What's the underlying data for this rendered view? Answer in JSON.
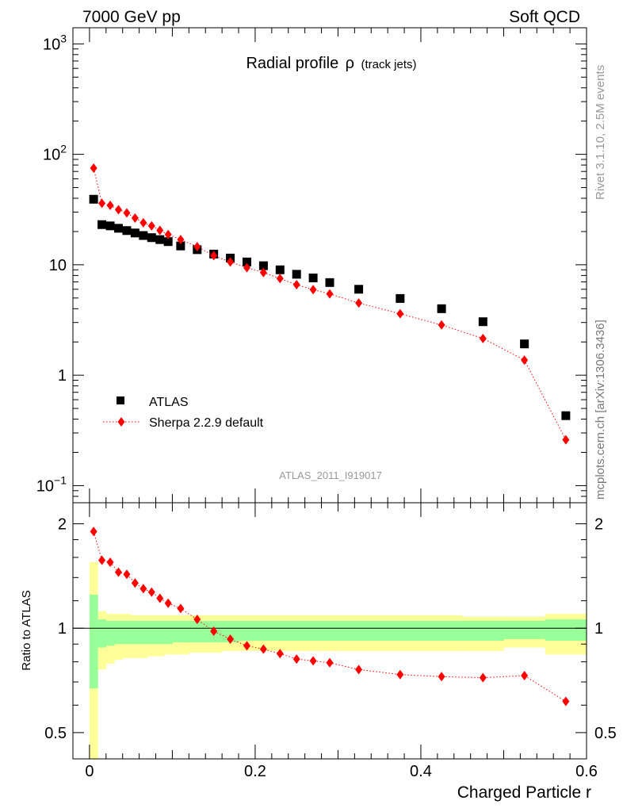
{
  "header": {
    "left": "7000 GeV pp",
    "right": "Soft QCD"
  },
  "side_labels": {
    "top": "Rivet 3.1.10,  2.5M events",
    "bottom": "mcplots.cern.ch [arXiv:1306.3436]"
  },
  "chart_data": [
    {
      "type": "scatter",
      "title": "Radial profile",
      "title_symbol": "ρ",
      "title_suffix": "(track jets)",
      "watermark": "ATLAS_2011_I919017",
      "yscale": "log",
      "ylim": [
        0.07,
        1400
      ],
      "xlim": [
        -0.02,
        0.6
      ],
      "y_ticks": [
        {
          "v": 1000,
          "base": "10",
          "exp": "3"
        },
        {
          "v": 100,
          "base": "10",
          "exp": "2"
        },
        {
          "v": 10,
          "label": "10"
        },
        {
          "v": 1,
          "label": "1"
        },
        {
          "v": 0.1,
          "base": "10",
          "exp": "−1"
        }
      ],
      "legend_position": "bottom-left",
      "series": [
        {
          "name": "ATLAS",
          "color": "#000000",
          "marker": "square",
          "x": [
            0.005,
            0.015,
            0.025,
            0.035,
            0.045,
            0.055,
            0.065,
            0.075,
            0.085,
            0.095,
            0.11,
            0.13,
            0.15,
            0.17,
            0.19,
            0.21,
            0.23,
            0.25,
            0.27,
            0.29,
            0.325,
            0.375,
            0.425,
            0.475,
            0.525,
            0.575
          ],
          "y": [
            39.2,
            23.1,
            22.5,
            21.4,
            20.4,
            19.4,
            18.4,
            17.6,
            16.9,
            16.2,
            14.8,
            13.7,
            12.5,
            11.5,
            10.6,
            9.8,
            9.0,
            8.2,
            7.6,
            6.9,
            6.0,
            4.95,
            4.0,
            3.05,
            1.92,
            0.43
          ]
        },
        {
          "name": "Sherpa 2.2.9 default",
          "color": "#ff0000",
          "marker": "diamond",
          "line": "dotted",
          "x": [
            0.005,
            0.015,
            0.025,
            0.035,
            0.045,
            0.055,
            0.065,
            0.075,
            0.085,
            0.095,
            0.11,
            0.13,
            0.15,
            0.17,
            0.19,
            0.21,
            0.23,
            0.25,
            0.27,
            0.29,
            0.325,
            0.375,
            0.425,
            0.475,
            0.525,
            0.575
          ],
          "y": [
            75,
            36,
            34.5,
            31.5,
            29.5,
            26.5,
            24,
            22.5,
            20.5,
            18.8,
            16.9,
            14.6,
            12.1,
            10.6,
            9.4,
            8.5,
            7.5,
            6.6,
            5.95,
            5.45,
            4.5,
            3.6,
            2.85,
            2.15,
            1.37,
            0.26
          ]
        }
      ]
    },
    {
      "type": "scatter",
      "ylabel": "Ratio to ATLAS",
      "xlabel": "Charged Particle r",
      "yscale": "log",
      "ylim": [
        0.42,
        2.3
      ],
      "xlim": [
        -0.02,
        0.6
      ],
      "y_ticks": [
        {
          "v": 2,
          "label": "2"
        },
        {
          "v": 1,
          "label": "1"
        },
        {
          "v": 0.5,
          "label": "0.5"
        }
      ],
      "x_ticks": [
        {
          "v": 0,
          "label": "0"
        },
        {
          "v": 0.2,
          "label": "0.2"
        },
        {
          "v": 0.4,
          "label": "0.4"
        },
        {
          "v": 0.6,
          "label": "0.6"
        }
      ],
      "bands": {
        "edges": [
          0,
          0.01,
          0.02,
          0.03,
          0.04,
          0.05,
          0.06,
          0.07,
          0.08,
          0.09,
          0.1,
          0.12,
          0.14,
          0.16,
          0.18,
          0.2,
          0.22,
          0.24,
          0.26,
          0.28,
          0.3,
          0.35,
          0.4,
          0.45,
          0.5,
          0.55,
          0.6
        ],
        "yellow_color": "#ffff99",
        "green_color": "#99ff99",
        "yellow_lo": [
          0.4,
          0.76,
          0.79,
          0.81,
          0.82,
          0.82,
          0.82,
          0.83,
          0.83,
          0.84,
          0.84,
          0.85,
          0.85,
          0.86,
          0.86,
          0.86,
          0.86,
          0.86,
          0.86,
          0.86,
          0.86,
          0.86,
          0.86,
          0.86,
          0.88,
          0.84
        ],
        "yellow_hi": [
          1.55,
          1.12,
          1.1,
          1.1,
          1.1,
          1.09,
          1.09,
          1.09,
          1.09,
          1.09,
          1.09,
          1.09,
          1.09,
          1.09,
          1.09,
          1.09,
          1.09,
          1.09,
          1.09,
          1.09,
          1.09,
          1.09,
          1.09,
          1.08,
          1.08,
          1.1
        ],
        "green_lo": [
          0.67,
          0.88,
          0.89,
          0.9,
          0.9,
          0.9,
          0.9,
          0.9,
          0.9,
          0.9,
          0.91,
          0.91,
          0.91,
          0.91,
          0.92,
          0.92,
          0.92,
          0.92,
          0.92,
          0.92,
          0.92,
          0.92,
          0.92,
          0.92,
          0.93,
          0.92
        ],
        "green_hi": [
          1.25,
          1.06,
          1.05,
          1.05,
          1.05,
          1.05,
          1.05,
          1.05,
          1.05,
          1.05,
          1.05,
          1.05,
          1.05,
          1.05,
          1.05,
          1.05,
          1.05,
          1.05,
          1.05,
          1.05,
          1.05,
          1.05,
          1.05,
          1.05,
          1.05,
          1.06
        ]
      },
      "series": [
        {
          "name": "Sherpa 2.2.9 default",
          "color": "#ff0000",
          "marker": "diamond",
          "line": "dotted",
          "x": [
            0.005,
            0.015,
            0.025,
            0.035,
            0.045,
            0.055,
            0.065,
            0.075,
            0.085,
            0.095,
            0.11,
            0.13,
            0.15,
            0.17,
            0.19,
            0.21,
            0.23,
            0.25,
            0.27,
            0.29,
            0.325,
            0.375,
            0.425,
            0.475,
            0.525,
            0.575
          ],
          "y": [
            1.9,
            1.57,
            1.55,
            1.45,
            1.43,
            1.35,
            1.3,
            1.27,
            1.22,
            1.18,
            1.14,
            1.06,
            0.98,
            0.93,
            0.89,
            0.87,
            0.845,
            0.815,
            0.805,
            0.795,
            0.76,
            0.735,
            0.725,
            0.72,
            0.73,
            0.615
          ]
        }
      ]
    }
  ]
}
